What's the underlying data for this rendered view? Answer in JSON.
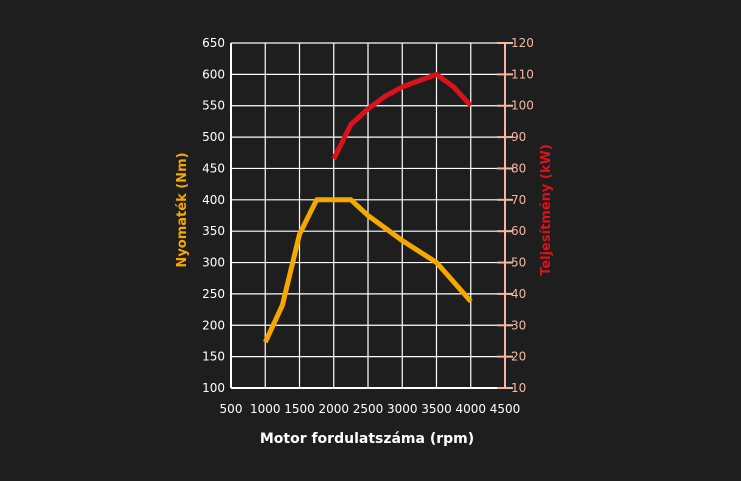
{
  "chart_data": {
    "type": "line",
    "title": "",
    "xlabel": "Motor fordulatszáma (rpm)",
    "ylabel_left": "Nyomaték (Nm)",
    "ylabel_right": "Teljesítmény (kW)",
    "xlim": [
      500,
      4500
    ],
    "x_ticks": [
      500,
      1000,
      1500,
      2000,
      2500,
      3000,
      3500,
      4000,
      4500
    ],
    "ylim_left": [
      100,
      650
    ],
    "y_ticks_left": [
      100,
      150,
      200,
      250,
      300,
      350,
      400,
      450,
      500,
      550,
      600,
      650
    ],
    "ylim_right": [
      10,
      120
    ],
    "y_ticks_right": [
      10,
      20,
      30,
      40,
      50,
      60,
      70,
      80,
      90,
      100,
      110,
      120
    ],
    "grid": true,
    "colors": {
      "background": "#1e1e1e",
      "grid": "#ffffff",
      "torque": "#f5a800",
      "power": "#d9121b",
      "right_axis": "#f2b8a0"
    },
    "series": [
      {
        "axis": "left",
        "color": "#f5a800",
        "x": [
          1000,
          1250,
          1500,
          1750,
          2000,
          2250,
          2500,
          3000,
          3500,
          4000
        ],
        "y": [
          173,
          232,
          345,
          400,
          400,
          400,
          375,
          335,
          300,
          238
        ]
      },
      {
        "axis": "right",
        "color": "#d9121b",
        "x": [
          2000,
          2250,
          2500,
          2750,
          3000,
          3250,
          3500,
          3750,
          4000
        ],
        "y": [
          83,
          94,
          99,
          103,
          106,
          108,
          110,
          106,
          100
        ]
      }
    ]
  }
}
